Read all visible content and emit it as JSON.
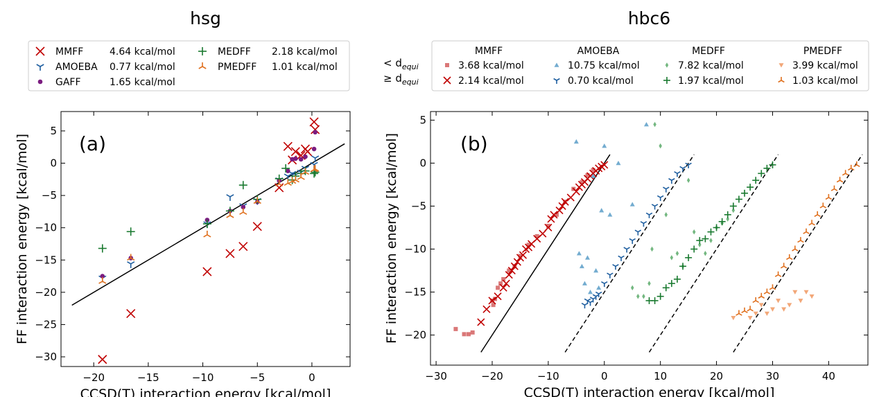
{
  "chart_data": [
    {
      "type": "scatter",
      "panel_label": "(a)",
      "title": "hsg",
      "xlabel": "CCSD(T) interaction energy [kcal/mol]",
      "ylabel": "FF interaction energy [kcal/mol]",
      "xlim": [
        -23,
        3.5
      ],
      "ylim": [
        -31.5,
        8
      ],
      "xticks": [
        -20,
        -15,
        -10,
        -5,
        0
      ],
      "yticks": [
        -30,
        -25,
        -20,
        -15,
        -10,
        -5,
        0,
        5
      ],
      "grid": false,
      "legend_position": "above plot",
      "reference_line": {
        "x": [
          -22,
          3
        ],
        "y": [
          -22,
          3
        ]
      },
      "series": [
        {
          "name": "MMFF",
          "error": "4.64 kcal/mol",
          "marker": "x",
          "color": "#c00000",
          "x": [
            -19.2,
            -16.6,
            -9.6,
            -7.5,
            -6.3,
            -5.0,
            -3.0,
            -2.2,
            -1.8,
            -1.5,
            -1.0,
            -0.6,
            -0.4,
            0.2,
            0.3
          ],
          "y": [
            -30.4,
            -23.3,
            -16.8,
            -14.0,
            -12.9,
            -9.8,
            -3.8,
            2.6,
            0.5,
            1.8,
            1.2,
            2.2,
            1.8,
            6.4,
            5.2
          ]
        },
        {
          "name": "AMOEBA",
          "error": "0.77 kcal/mol",
          "marker": "tri_down",
          "color": "#1f5fa0",
          "x": [
            -19.2,
            -16.6,
            -9.6,
            -7.5,
            -6.3,
            -5.0,
            -3.0,
            -2.2,
            -1.8,
            -1.5,
            -1.0,
            -0.6,
            0.2,
            0.3
          ],
          "y": [
            -17.8,
            -15.6,
            -9.4,
            -5.2,
            -6.6,
            -5.8,
            -2.6,
            -2.0,
            -1.6,
            -1.8,
            -1.4,
            -0.8,
            -0.2,
            0.8
          ]
        },
        {
          "name": "GAFF",
          "error": "1.65 kcal/mol",
          "marker": "o",
          "color": "#7b1c80",
          "x": [
            -19.2,
            -16.6,
            -9.6,
            -7.5,
            -6.3,
            -5.0,
            -3.0,
            -2.2,
            -1.8,
            -1.5,
            -1.0,
            -0.6,
            0.2,
            0.3
          ],
          "y": [
            -17.5,
            -14.7,
            -8.8,
            -7.4,
            -6.8,
            -6.0,
            -2.7,
            -1.2,
            0.6,
            0.7,
            0.6,
            1.0,
            2.2,
            4.8
          ]
        },
        {
          "name": "MEDFF",
          "error": "2.18 kcal/mol",
          "marker": "+",
          "color": "#1a7a30",
          "x": [
            -19.2,
            -16.6,
            -9.6,
            -7.5,
            -6.3,
            -5.0,
            -3.0,
            -2.4,
            -1.8,
            -1.5,
            -1.0,
            -0.6,
            0.2,
            0.3
          ],
          "y": [
            -13.2,
            -10.6,
            -9.4,
            -7.4,
            -3.4,
            -5.6,
            -2.4,
            -0.8,
            -2.6,
            -2.0,
            -1.6,
            -1.2,
            -1.6,
            -1.4
          ]
        },
        {
          "name": "PMEDFF",
          "error": "1.01 kcal/mol",
          "marker": "tri_up",
          "color": "#e0701e",
          "x": [
            -19.2,
            -16.6,
            -9.6,
            -7.5,
            -6.3,
            -5.0,
            -3.0,
            -2.2,
            -1.8,
            -1.5,
            -1.0,
            -0.6,
            0.2,
            0.3
          ],
          "y": [
            -18.3,
            -14.7,
            -11.1,
            -8.1,
            -7.6,
            -5.9,
            -3.2,
            -3.1,
            -2.8,
            -2.6,
            -2.2,
            -1.4,
            -1.0,
            -0.9
          ]
        }
      ]
    },
    {
      "type": "scatter",
      "panel_label": "(b)",
      "title": "hbc6",
      "xlabel": "CCSD(T) interaction energy [kcal/mol]",
      "ylabel": "FF interaction energy [kcal/mol]",
      "xlim": [
        -31,
        47
      ],
      "ylim": [
        -23.5,
        6
      ],
      "xticks": [
        -30,
        -20,
        -10,
        0,
        10,
        20,
        30,
        40
      ],
      "yticks": [
        -20,
        -15,
        -10,
        -5,
        0,
        5
      ],
      "grid": false,
      "legend_position": "above plot",
      "legend_row_labels": [
        "< d",
        "≥ d"
      ],
      "legend_row_subscript": "equi",
      "reference_lines": [
        {
          "style": "solid",
          "x": [
            -22,
            1
          ],
          "y": [
            -22,
            1
          ]
        },
        {
          "style": "dashed",
          "x": [
            -7,
            16
          ],
          "y": [
            -22,
            1
          ]
        },
        {
          "style": "dashed",
          "x": [
            8,
            31
          ],
          "y": [
            -22,
            1
          ]
        },
        {
          "style": "dashed",
          "x": [
            23,
            46
          ],
          "y": [
            -22,
            1
          ]
        }
      ],
      "x_offsets_note": "Series offset along x by 0, 15, 30, 45",
      "series": [
        {
          "name": "MMFF",
          "row": "< d",
          "error": "3.68 kcal/mol",
          "marker": "s",
          "color": "#d46060",
          "x": [
            -26.5,
            -25.0,
            -24.2,
            -23.5,
            -20.0,
            -19.8,
            -19.5,
            -19.0,
            -18.5,
            -18.0,
            -17.0,
            -16.0,
            -15.0,
            -13.5,
            -12.0,
            -10.0,
            -8.5,
            -7.0,
            -5.5,
            -4.0,
            -3.0,
            -2.0
          ],
          "y": [
            -19.3,
            -19.9,
            -19.9,
            -19.7,
            -16.0,
            -16.5,
            -15.8,
            -14.5,
            -14.0,
            -13.5,
            -12.5,
            -12.0,
            -10.8,
            -9.5,
            -8.5,
            -7.3,
            -6.0,
            -4.5,
            -3.0,
            -2.2,
            -1.4,
            -0.8
          ]
        },
        {
          "name": "MMFF",
          "row": "≥ d",
          "error": "2.14 kcal/mol",
          "marker": "x",
          "color": "#c00000",
          "x": [
            -22.0,
            -21.0,
            -20.0,
            -19.0,
            -18.0,
            -17.5,
            -17.0,
            -16.5,
            -16.0,
            -15.5,
            -15.0,
            -14.5,
            -14.0,
            -13.5,
            -13.0,
            -12.0,
            -11.0,
            -10.0,
            -9.5,
            -9.0,
            -8.0,
            -7.5,
            -7.0,
            -6.0,
            -5.0,
            -4.5,
            -4.0,
            -3.5,
            -3.0,
            -2.5,
            -2.0,
            -1.5,
            -1.0,
            -0.5,
            0.0
          ],
          "y": [
            -18.5,
            -17.0,
            -16.0,
            -15.5,
            -14.5,
            -14.0,
            -13.0,
            -12.5,
            -12.0,
            -11.5,
            -11.0,
            -10.7,
            -10.0,
            -9.8,
            -9.4,
            -8.8,
            -8.2,
            -7.5,
            -6.5,
            -6.0,
            -5.5,
            -5.0,
            -4.5,
            -4.0,
            -3.3,
            -2.8,
            -2.5,
            -2.2,
            -1.8,
            -1.5,
            -1.2,
            -0.9,
            -0.6,
            -0.4,
            -0.2
          ]
        },
        {
          "name": "AMOEBA",
          "row": "< d",
          "error": "10.75 kcal/mol",
          "marker": "^",
          "color": "#5a9ec8",
          "x": [
            -5.0,
            -4.5,
            -4.0,
            -3.5,
            -3.0,
            -2.5,
            -2.0,
            -1.5,
            -1.0,
            -0.5,
            0.0,
            1.0,
            2.5,
            5.0,
            7.5
          ],
          "y": [
            2.5,
            -10.5,
            -12.0,
            -14.0,
            -11.0,
            -15.0,
            -1.5,
            -12.5,
            -14.5,
            -5.5,
            2.0,
            -6.0,
            0.0,
            -4.8,
            4.5
          ]
        },
        {
          "name": "AMOEBA",
          "row": "≥ d",
          "error": "0.70 kcal/mol",
          "marker": "tri_down",
          "color": "#1f5fa0",
          "x": [
            -3.5,
            -3.0,
            -2.5,
            -2.0,
            -1.5,
            -1.0,
            0.0,
            1.0,
            2.0,
            3.0,
            4.0,
            5.0,
            6.0,
            7.0,
            8.0,
            9.0,
            10.0,
            11.0,
            12.0,
            13.0,
            14.0,
            15.0
          ],
          "y": [
            -16.5,
            -16.0,
            -16.2,
            -15.8,
            -15.5,
            -15.2,
            -14.0,
            -13.0,
            -12.0,
            -11.0,
            -10.0,
            -9.0,
            -8.0,
            -7.0,
            -6.0,
            -5.0,
            -4.0,
            -3.0,
            -2.0,
            -1.2,
            -0.6,
            -0.2
          ]
        },
        {
          "name": "MEDFF",
          "row": "< d",
          "error": "7.82 kcal/mol",
          "marker": "d",
          "color": "#5aaa6a",
          "x": [
            5.0,
            6.0,
            7.0,
            8.0,
            8.5,
            9.0,
            10.0,
            11.0,
            12.0,
            13.0,
            14.0,
            15.0,
            16.0,
            17.0,
            18.0,
            19.0,
            20.0,
            21.0,
            22.0,
            23.0
          ],
          "y": [
            -14.5,
            -15.5,
            -15.5,
            -14.0,
            -10.0,
            4.5,
            2.0,
            -6.0,
            -11.0,
            -10.5,
            -12.0,
            -2.0,
            -8.0,
            -9.5,
            -10.5,
            -9.0,
            -7.5,
            -7.0,
            -6.5,
            -5.5
          ]
        },
        {
          "name": "MEDFF",
          "row": "≥ d",
          "error": "1.97 kcal/mol",
          "marker": "+",
          "color": "#1a7a30",
          "x": [
            8.0,
            9.0,
            10.0,
            11.0,
            12.0,
            13.0,
            14.0,
            15.0,
            16.0,
            17.0,
            18.0,
            19.0,
            20.0,
            21.0,
            22.0,
            23.0,
            24.0,
            25.0,
            26.0,
            27.0,
            28.0,
            29.0,
            30.0
          ],
          "y": [
            -16.0,
            -16.0,
            -15.5,
            -14.5,
            -14.0,
            -13.5,
            -12.0,
            -11.0,
            -10.0,
            -9.0,
            -8.8,
            -8.0,
            -7.5,
            -6.8,
            -6.0,
            -5.0,
            -4.2,
            -3.5,
            -2.8,
            -2.0,
            -1.2,
            -0.6,
            -0.2
          ]
        },
        {
          "name": "PMEDFF",
          "row": "< d",
          "error": "3.99 kcal/mol",
          "marker": "v",
          "color": "#f09860",
          "x": [
            23.0,
            26.0,
            27.0,
            28.0,
            29.0,
            30.0,
            31.0,
            32.0,
            33.0,
            34.0,
            35.0,
            36.0,
            37.0
          ],
          "y": [
            -18.0,
            -18.0,
            -17.5,
            -16.5,
            -17.5,
            -17.0,
            -16.0,
            -17.0,
            -16.5,
            -15.0,
            -16.0,
            -15.0,
            -15.5
          ]
        },
        {
          "name": "PMEDFF",
          "row": "≥ d",
          "error": "1.03 kcal/mol",
          "marker": "tri_up",
          "color": "#e0701e",
          "x": [
            24.0,
            25.0,
            26.0,
            27.0,
            28.0,
            29.0,
            30.0,
            31.0,
            32.0,
            33.0,
            34.0,
            35.0,
            36.0,
            37.0,
            38.0,
            39.0,
            40.0,
            41.0,
            42.0,
            43.0,
            44.0,
            45.0
          ],
          "y": [
            -17.5,
            -17.2,
            -17.0,
            -16.0,
            -15.5,
            -15.0,
            -14.5,
            -13.0,
            -12.0,
            -11.0,
            -10.0,
            -9.0,
            -8.0,
            -7.0,
            -6.0,
            -5.0,
            -4.0,
            -3.0,
            -2.0,
            -1.2,
            -0.6,
            -0.2
          ]
        }
      ]
    }
  ]
}
